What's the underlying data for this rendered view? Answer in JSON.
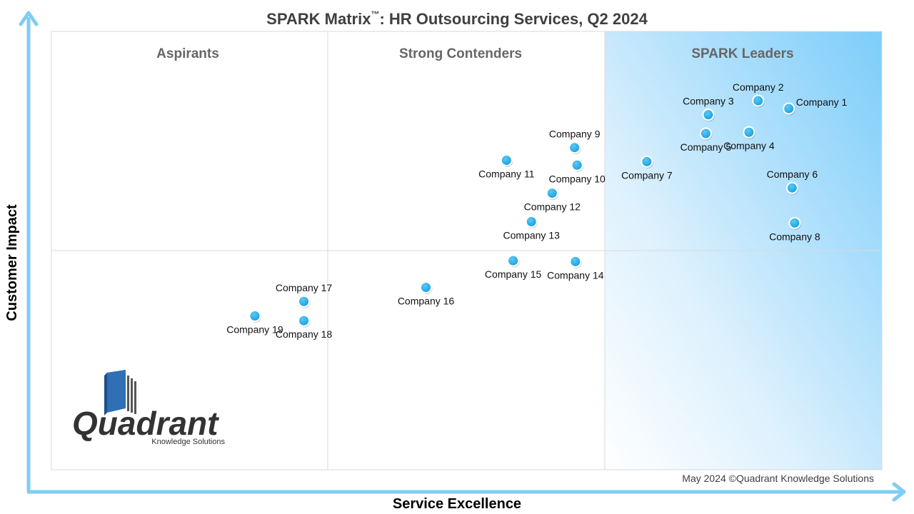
{
  "chart_data": {
    "type": "scatter",
    "title_main": "SPARK Matrix",
    "title_tm": "™",
    "title_rest": ": HR Outsourcing Services, Q2 2024",
    "xlabel": "Service Excellence",
    "ylabel": "Customer Impact",
    "quadrants": [
      "Aspirants",
      "Strong Contenders",
      "SPARK Leaders"
    ],
    "grid": true,
    "colors": {
      "point": "#1aa7e6",
      "axis": "#7fcdf5",
      "leaders_fill": "#9ed8fb"
    },
    "points": [
      {
        "name": "Company 1",
        "x": 88.8,
        "y": 82.4,
        "label_pos": "right"
      },
      {
        "name": "Company 2",
        "x": 85.1,
        "y": 84.2,
        "label_pos": "above"
      },
      {
        "name": "Company 3",
        "x": 79.1,
        "y": 81.0,
        "label_pos": "above"
      },
      {
        "name": "Company 4",
        "x": 84.0,
        "y": 77.0,
        "label_pos": "below"
      },
      {
        "name": "Company 5",
        "x": 78.8,
        "y": 76.7,
        "label_pos": "below"
      },
      {
        "name": "Company 6",
        "x": 89.2,
        "y": 64.3,
        "label_pos": "above"
      },
      {
        "name": "Company 7",
        "x": 71.7,
        "y": 70.3,
        "label_pos": "below"
      },
      {
        "name": "Company 8",
        "x": 89.5,
        "y": 56.3,
        "label_pos": "below"
      },
      {
        "name": "Company 9",
        "x": 63.0,
        "y": 73.5,
        "label_pos": "above"
      },
      {
        "name": "Company 10",
        "x": 63.3,
        "y": 69.5,
        "label_pos": "below"
      },
      {
        "name": "Company 11",
        "x": 54.8,
        "y": 70.6,
        "label_pos": "below"
      },
      {
        "name": "Company 12",
        "x": 60.3,
        "y": 63.1,
        "label_pos": "below"
      },
      {
        "name": "Company 13",
        "x": 57.8,
        "y": 56.6,
        "label_pos": "below"
      },
      {
        "name": "Company 14",
        "x": 63.1,
        "y": 47.5,
        "label_pos": "below"
      },
      {
        "name": "Company 15",
        "x": 55.6,
        "y": 47.7,
        "label_pos": "below"
      },
      {
        "name": "Company 16",
        "x": 45.1,
        "y": 41.6,
        "label_pos": "below"
      },
      {
        "name": "Company 17",
        "x": 30.4,
        "y": 38.4,
        "label_pos": "above"
      },
      {
        "name": "Company 18",
        "x": 30.4,
        "y": 34.0,
        "label_pos": "below"
      },
      {
        "name": "Company 19",
        "x": 24.5,
        "y": 35.1,
        "label_pos": "below"
      }
    ]
  },
  "logo": {
    "name": "Quadrant",
    "sub": "Knowledge Solutions"
  },
  "copyright": "May 2024 ©Quadrant Knowledge Solutions"
}
